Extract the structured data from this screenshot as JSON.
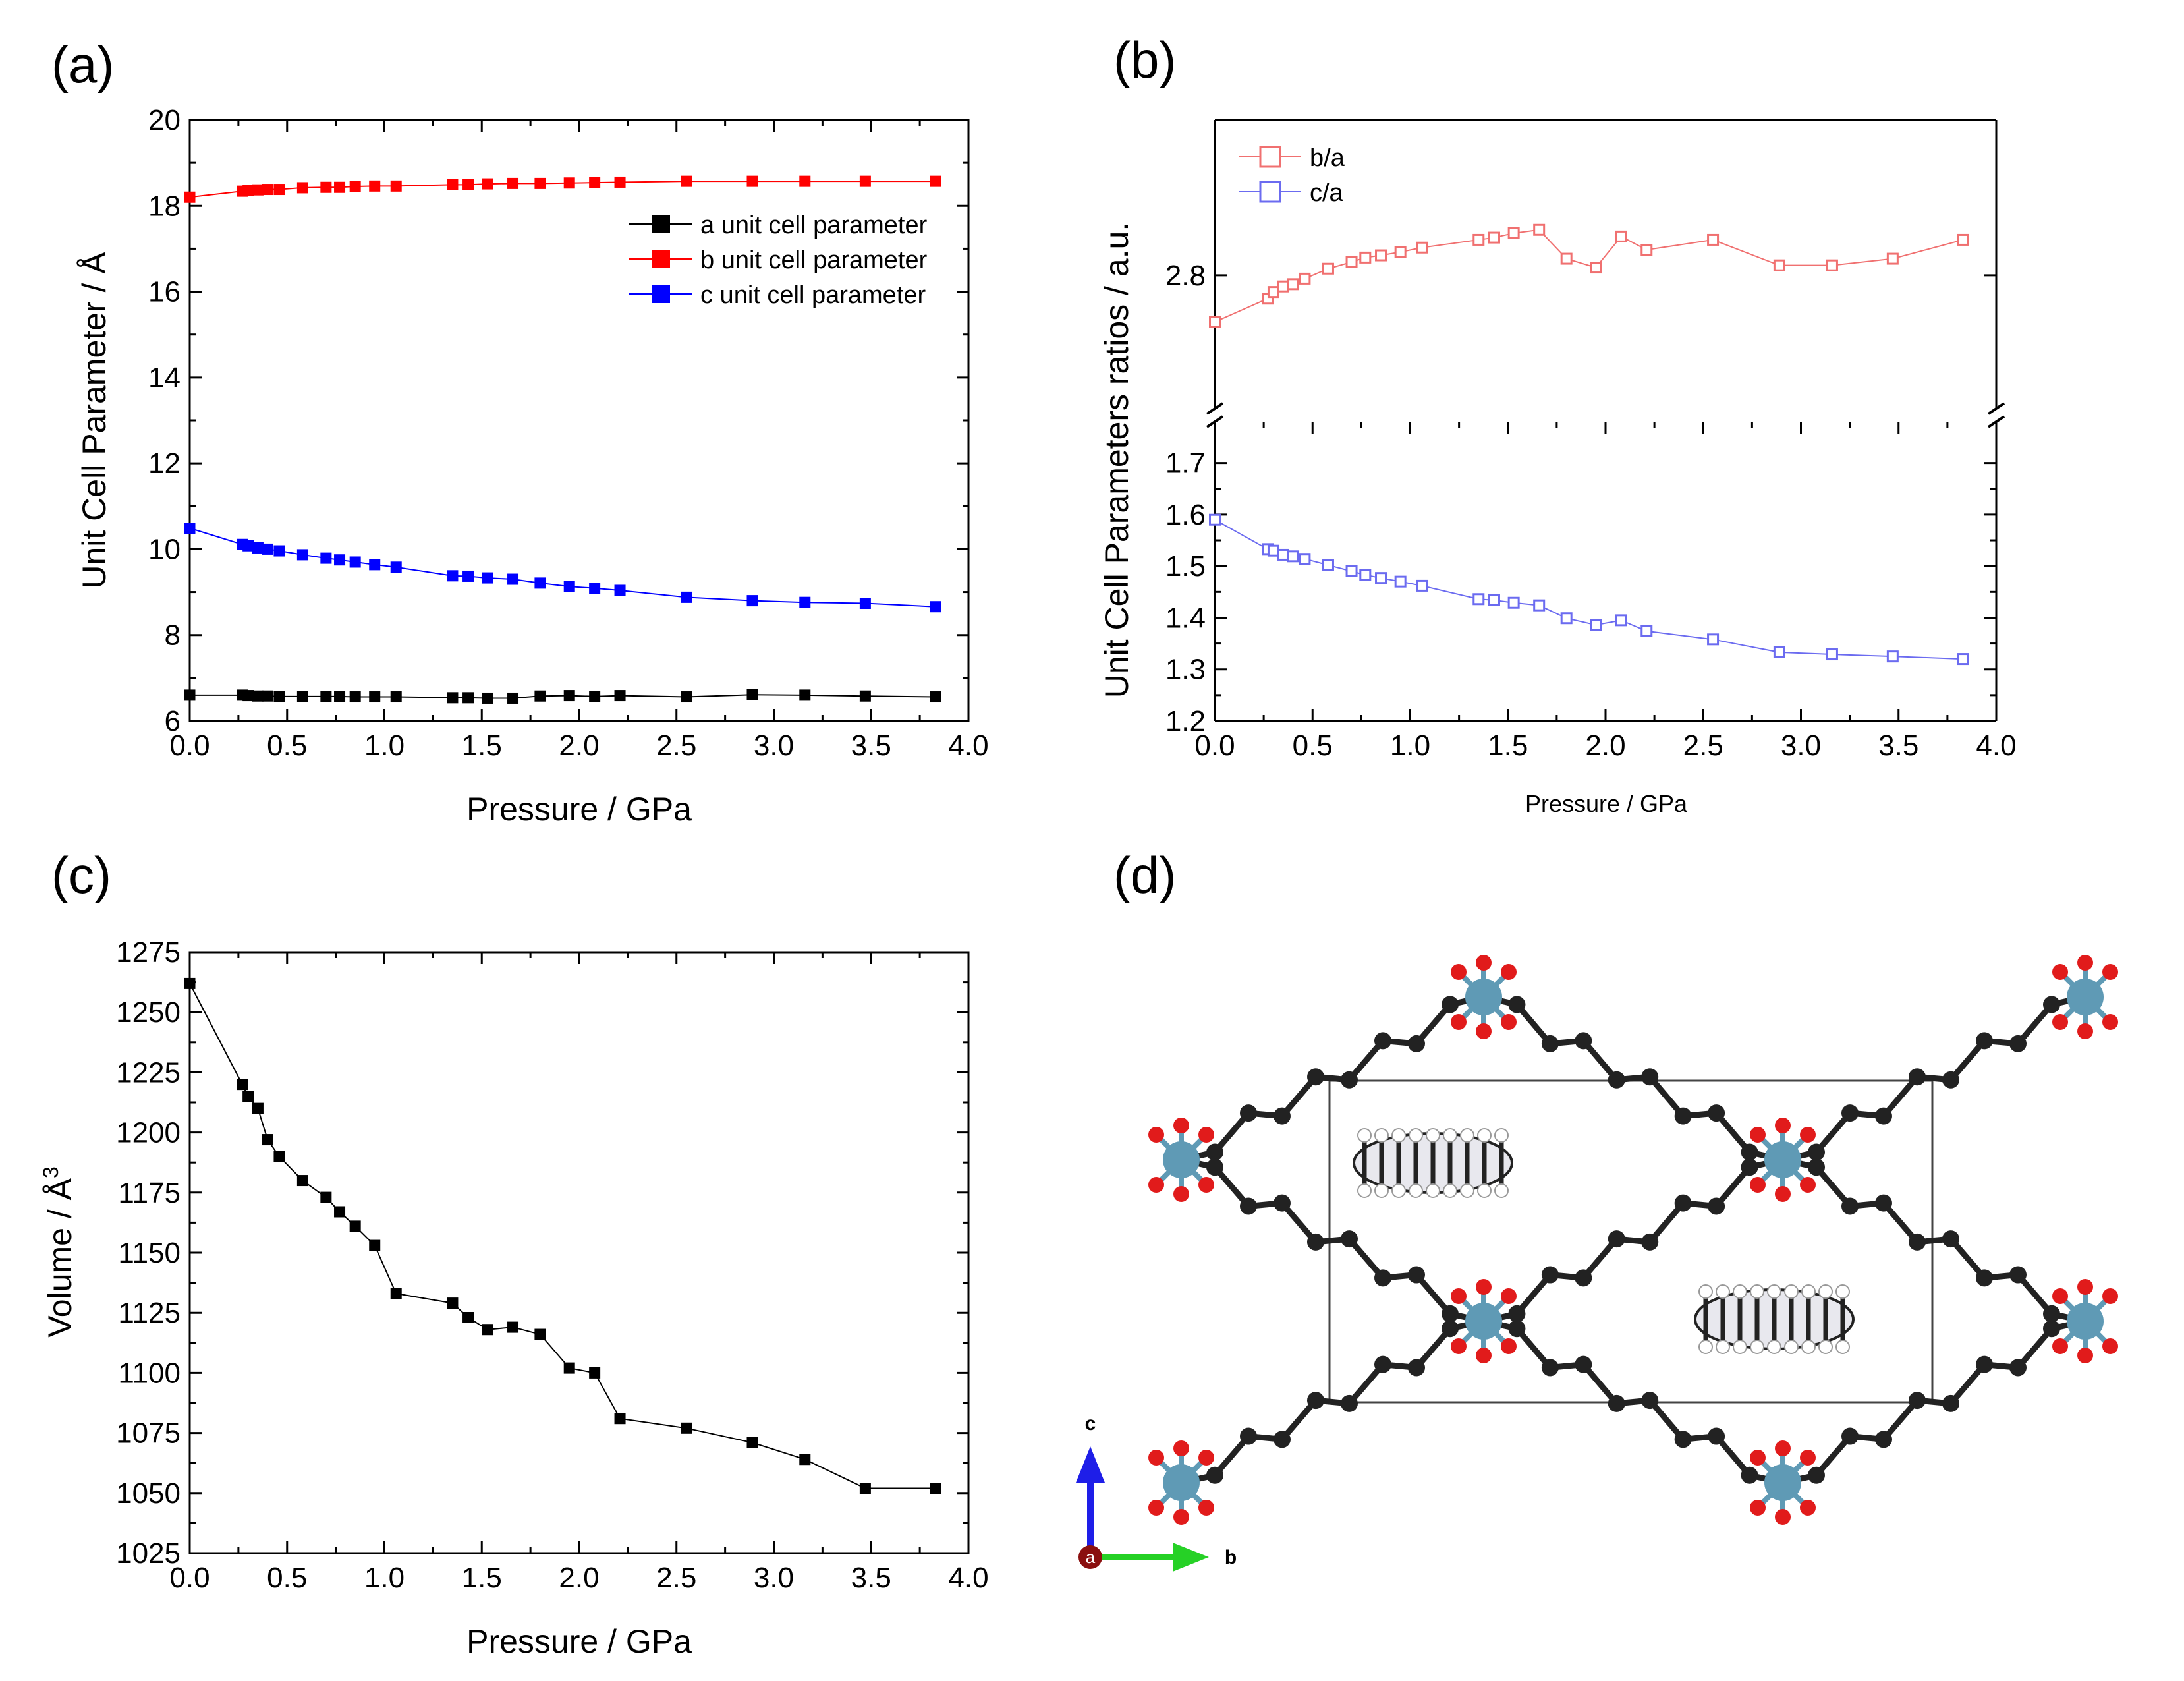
{
  "colors": {
    "black": "#000000",
    "red": "#ff0000",
    "blue": "#0000ff",
    "pink": "#f07070",
    "lightblue": "#6b6bf0",
    "grey": "#888888",
    "metal": "#5f9ab5",
    "oxygen": "#e11b1b",
    "carbon": "#222222",
    "axisc": "#1e1ee8",
    "axisb": "#26d126",
    "axisa": "#8a0f0f"
  },
  "chart_data": [
    {
      "panel": "(a)",
      "type": "line",
      "xlabel": "Pressure / GPa",
      "ylabel": "Unit Cell Parameter  / Å",
      "xlim": [
        0,
        4
      ],
      "ylim": [
        6,
        20
      ],
      "xticks": [
        "0.0",
        "0.5",
        "1.0",
        "1.5",
        "2.0",
        "2.5",
        "3.0",
        "3.5",
        "4.0"
      ],
      "yticks": [
        "6",
        "8",
        "10",
        "12",
        "14",
        "16",
        "18",
        "20"
      ],
      "legend": "top-right",
      "x": [
        0.0,
        0.27,
        0.3,
        0.35,
        0.4,
        0.46,
        0.58,
        0.7,
        0.77,
        0.85,
        0.95,
        1.06,
        1.35,
        1.43,
        1.53,
        1.66,
        1.8,
        1.95,
        2.08,
        2.21,
        2.55,
        2.89,
        3.16,
        3.47,
        3.83
      ],
      "series": [
        {
          "name": "a unit cell parameter",
          "color": "#000000",
          "values": [
            6.6,
            6.6,
            6.59,
            6.58,
            6.58,
            6.57,
            6.57,
            6.57,
            6.57,
            6.56,
            6.56,
            6.56,
            6.54,
            6.54,
            6.53,
            6.53,
            6.58,
            6.59,
            6.57,
            6.59,
            6.56,
            6.61,
            6.6,
            6.58,
            6.56
          ]
        },
        {
          "name": "b unit cell parameter",
          "color": "#ff0000",
          "values": [
            18.2,
            18.34,
            18.35,
            18.37,
            18.38,
            18.38,
            18.42,
            18.43,
            18.43,
            18.45,
            18.46,
            18.46,
            18.49,
            18.49,
            18.51,
            18.52,
            18.52,
            18.53,
            18.54,
            18.55,
            18.57,
            18.57,
            18.57,
            18.57,
            18.57
          ]
        },
        {
          "name": "c unit cell parameter",
          "color": "#0000ff",
          "values": [
            10.49,
            10.11,
            10.08,
            10.03,
            10.0,
            9.96,
            9.87,
            9.79,
            9.75,
            9.7,
            9.64,
            9.58,
            9.38,
            9.37,
            9.33,
            9.3,
            9.21,
            9.13,
            9.09,
            9.04,
            8.88,
            8.8,
            8.76,
            8.74,
            8.66
          ]
        }
      ]
    },
    {
      "panel": "(b)",
      "type": "line",
      "xlabel": "Pressure / GPa",
      "ylabel": "Unit Cell Parameters ratios / a.u.",
      "xlim": [
        0,
        4
      ],
      "upper_ylim": [
        2.68,
        2.94
      ],
      "upper_yticks": [
        "2.8"
      ],
      "lower_ylim": [
        1.2,
        1.78
      ],
      "lower_yticks": [
        "1.2",
        "1.3",
        "1.4",
        "1.5",
        "1.6",
        "1.7"
      ],
      "xticks": [
        "0.0",
        "0.5",
        "1.0",
        "1.5",
        "2.0",
        "2.5",
        "3.0",
        "3.5",
        "4.0"
      ],
      "legend": "top-left",
      "x": [
        0.0,
        0.27,
        0.3,
        0.35,
        0.4,
        0.46,
        0.58,
        0.7,
        0.77,
        0.85,
        0.95,
        1.06,
        1.35,
        1.43,
        1.53,
        1.66,
        1.8,
        1.95,
        2.08,
        2.21,
        2.55,
        2.89,
        3.16,
        3.47,
        3.83
      ],
      "series": [
        {
          "name": "b/a",
          "color": "#f07070",
          "axis": "upper",
          "values": [
            2.758,
            2.779,
            2.785,
            2.79,
            2.792,
            2.797,
            2.806,
            2.812,
            2.816,
            2.818,
            2.821,
            2.825,
            2.832,
            2.834,
            2.838,
            2.841,
            2.815,
            2.807,
            2.835,
            2.823,
            2.832,
            2.809,
            2.809,
            2.815,
            2.832
          ]
        },
        {
          "name": "c/a",
          "color": "#6b6bf0",
          "axis": "lower",
          "values": [
            1.59,
            1.533,
            1.53,
            1.522,
            1.519,
            1.514,
            1.502,
            1.49,
            1.483,
            1.477,
            1.47,
            1.462,
            1.436,
            1.434,
            1.429,
            1.424,
            1.399,
            1.386,
            1.395,
            1.374,
            1.358,
            1.333,
            1.329,
            1.325,
            1.32
          ]
        }
      ]
    },
    {
      "panel": "(c)",
      "type": "line",
      "xlabel": "Pressure / GPa",
      "ylabel": "Volume / Å",
      "ylabel_sup": "3",
      "xlim": [
        0,
        4
      ],
      "ylim": [
        1025,
        1275
      ],
      "xticks": [
        "0.0",
        "0.5",
        "1.0",
        "1.5",
        "2.0",
        "2.5",
        "3.0",
        "3.5",
        "4.0"
      ],
      "yticks": [
        "1025",
        "1050",
        "1075",
        "1100",
        "1125",
        "1150",
        "1175",
        "1200",
        "1225",
        "1250",
        "1275"
      ],
      "x": [
        0.0,
        0.27,
        0.3,
        0.35,
        0.4,
        0.46,
        0.58,
        0.7,
        0.77,
        0.85,
        0.95,
        1.06,
        1.35,
        1.43,
        1.53,
        1.66,
        1.8,
        1.95,
        2.08,
        2.21,
        2.55,
        2.89,
        3.16,
        3.47,
        3.83
      ],
      "series": [
        {
          "name": "Volume",
          "color": "#000000",
          "values": [
            1262,
            1220,
            1215,
            1210,
            1197,
            1190,
            1180,
            1173,
            1167,
            1161,
            1153,
            1133,
            1129,
            1123,
            1118,
            1119,
            1116,
            1102,
            1100,
            1081,
            1077,
            1071,
            1064,
            1052,
            1052
          ]
        }
      ]
    }
  ],
  "panels": {
    "a": "(a)",
    "b": "(b)",
    "c": "(c)",
    "d": "(d)"
  },
  "structure": {
    "axes": {
      "c": "c",
      "b": "b",
      "a": "a"
    }
  }
}
